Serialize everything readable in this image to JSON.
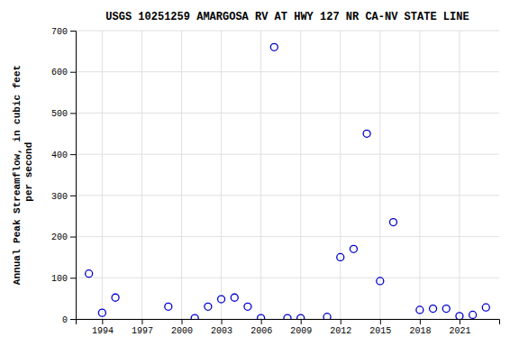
{
  "chart_data": {
    "type": "scatter",
    "title": "USGS 10251259 AMARGOSA RV AT HWY 127 NR CA-NV STATE LINE",
    "ylabel": "Annual Peak Streamflow, in cubic feet\n per second",
    "x": [
      1993,
      1994,
      1995,
      1999,
      2001,
      2002,
      2003,
      2004,
      2005,
      2006,
      2007,
      2008,
      2009,
      2011,
      2012,
      2013,
      2014,
      2015,
      2016,
      2018,
      2019,
      2020,
      2021,
      2022,
      2023
    ],
    "values": [
      110,
      15,
      52,
      30,
      2,
      30,
      48,
      52,
      30,
      2,
      660,
      2,
      2,
      5,
      150,
      170,
      450,
      92,
      235,
      22,
      25,
      25,
      7,
      10,
      28
    ],
    "color": "#0000CC",
    "xlim": [
      1992,
      2024
    ],
    "ylim": [
      0,
      700
    ],
    "xticks": [
      1994,
      1997,
      2000,
      2003,
      2006,
      2009,
      2012,
      2015,
      2018,
      2021
    ],
    "yticks": [
      0,
      100,
      200,
      300,
      400,
      500,
      600,
      700
    ],
    "grid": true
  }
}
